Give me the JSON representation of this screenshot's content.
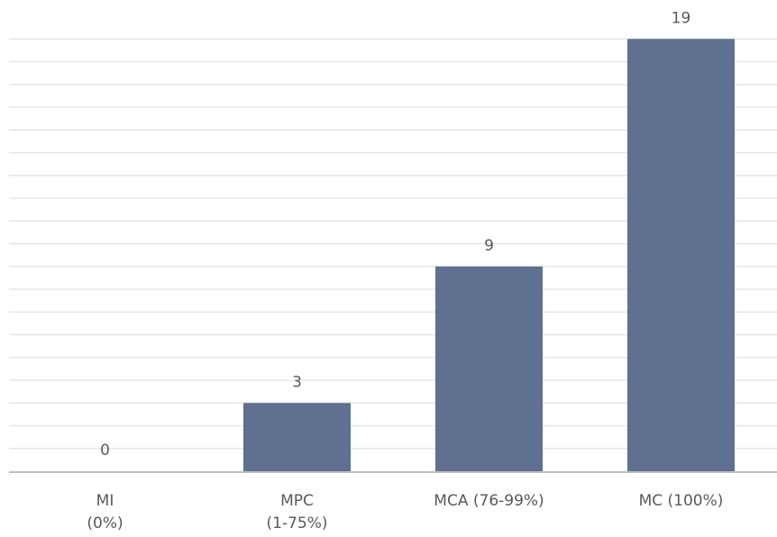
{
  "chart_data": {
    "type": "bar",
    "categories": [
      [
        "MI",
        "(0%)"
      ],
      [
        "MPC",
        "(1-75%)"
      ],
      [
        "MCA (76-99%)"
      ],
      [
        "MC (100%)"
      ]
    ],
    "values": [
      0,
      3,
      9,
      19
    ],
    "data_labels": [
      "0",
      "3",
      "9",
      "19"
    ],
    "ylim": [
      0,
      20
    ],
    "grid": true,
    "legend": "none",
    "colors": {
      "bar": "#5f7090",
      "grid": "#e6e6e6",
      "axis": "#bfbfbf",
      "text": "#595959"
    }
  }
}
